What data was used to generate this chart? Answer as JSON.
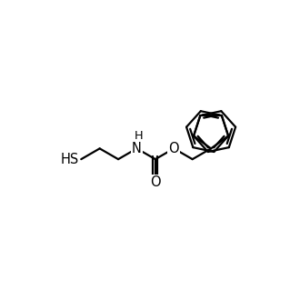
{
  "background_color": "#ffffff",
  "line_color": "#000000",
  "line_width": 1.6,
  "font_size": 10.5,
  "fig_size": [
    3.3,
    3.3
  ],
  "dpi": 100,
  "xlim": [
    0.0,
    10.0
  ],
  "ylim": [
    0.0,
    10.0
  ]
}
